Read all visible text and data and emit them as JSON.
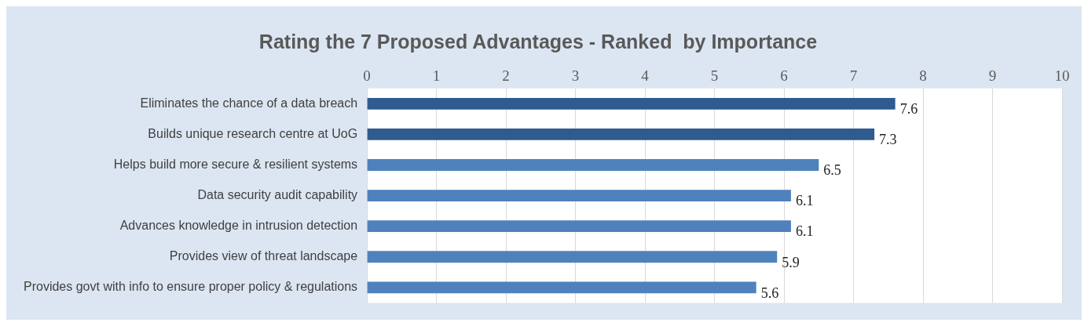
{
  "chart_data": {
    "type": "bar",
    "orientation": "horizontal",
    "title": "Rating the 7 Proposed Advantages - Ranked  by Importance",
    "categories": [
      "Eliminates the chance of a data breach",
      "Builds unique research centre at UoG",
      "Helps build more secure & resilient systems",
      "Data security audit capability",
      "Advances knowledge in intrusion detection",
      "Provides view of threat landscape",
      "Provides govt with info to ensure proper policy & regulations"
    ],
    "values": [
      7.6,
      7.3,
      6.5,
      6.1,
      6.1,
      5.9,
      5.6
    ],
    "colors": [
      "#2f5b8e",
      "#2f5b8e",
      "#4f81bd",
      "#4f81bd",
      "#4f81bd",
      "#4f81bd",
      "#4f81bd"
    ],
    "xlim": [
      0,
      10
    ],
    "xticks": [
      0,
      1,
      2,
      3,
      4,
      5,
      6,
      7,
      8,
      9,
      10
    ],
    "grid": "x",
    "data_labels": true
  }
}
